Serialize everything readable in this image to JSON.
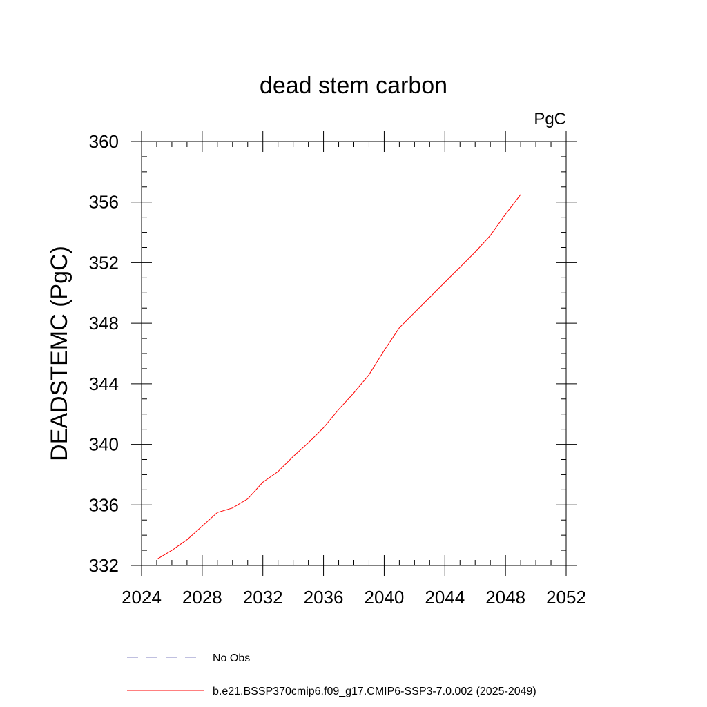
{
  "chart_data": {
    "type": "line",
    "title": "dead stem carbon",
    "units": "PgC",
    "xlabel": "",
    "ylabel": "DEADSTEMC  (PgC)",
    "xlim": [
      2024,
      2052
    ],
    "ylim": [
      332,
      360
    ],
    "xticks": [
      2024,
      2028,
      2032,
      2036,
      2040,
      2044,
      2048,
      2052
    ],
    "yticks": [
      332,
      336,
      340,
      344,
      348,
      352,
      356,
      360
    ],
    "grid": false,
    "legend_position": "bottom",
    "series": [
      {
        "name": "b.e21.BSSP370cmip6.f09_g17.CMIP6-SSP3-7.0.002 (2025-2049)",
        "color": "#ff0000",
        "style": "solid",
        "x": [
          2025,
          2026,
          2027,
          2028,
          2029,
          2030,
          2031,
          2032,
          2033,
          2034,
          2035,
          2036,
          2037,
          2038,
          2039,
          2040,
          2041,
          2042,
          2043,
          2044,
          2045,
          2046,
          2047,
          2048,
          2049
        ],
        "y": [
          332.4,
          333.0,
          333.7,
          334.6,
          335.5,
          335.8,
          336.4,
          337.5,
          338.2,
          339.2,
          340.1,
          341.1,
          342.3,
          343.4,
          344.6,
          346.2,
          347.7,
          348.7,
          349.7,
          350.7,
          351.7,
          352.7,
          353.8,
          355.2,
          356.5
        ]
      }
    ],
    "legend": [
      {
        "label": "No Obs",
        "color": "#8080c0",
        "style": "dashed"
      },
      {
        "label": "b.e21.BSSP370cmip6.f09_g17.CMIP6-SSP3-7.0.002 (2025-2049)",
        "color": "#ff0000",
        "style": "solid"
      }
    ]
  }
}
